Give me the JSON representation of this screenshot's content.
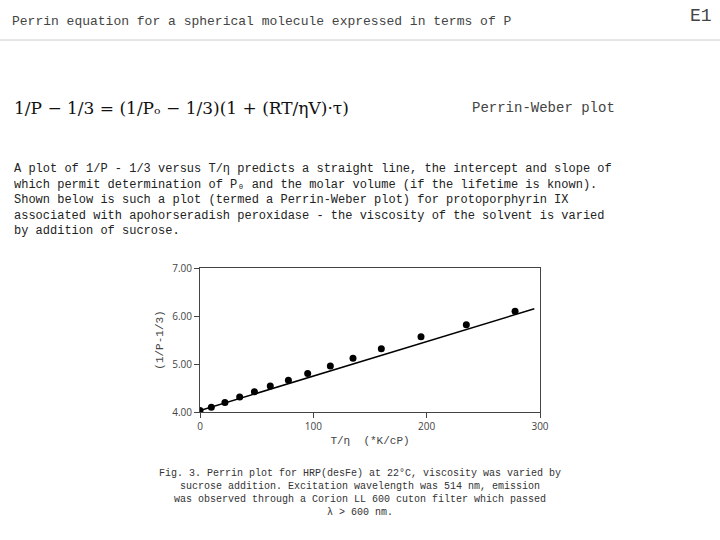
{
  "chart_data": {
    "type": "scatter",
    "title": "Perrin equation for a spherical molecule expressed in terms of P",
    "x_label": "T/η  (*K/cP)",
    "y_label": "(1/P-1/3)",
    "xlim": [
      0,
      300
    ],
    "xticks": [
      0,
      100,
      200,
      300
    ],
    "ylim": [
      4.0,
      7.0
    ],
    "yticks": [
      {
        "value": 4.0,
        "label": "4.00"
      },
      {
        "value": 5.0,
        "label": "5.00"
      },
      {
        "value": 6.0,
        "label": "6.00"
      },
      {
        "value": 7.0,
        "label": "7.00"
      }
    ],
    "grid": false,
    "series": [
      {
        "type": "scatter",
        "color": "#000000",
        "marker": "circle",
        "x": [
          0,
          10,
          22,
          35,
          48,
          62,
          78,
          95,
          115,
          135,
          160,
          195,
          235,
          278
        ],
        "values": [
          4.03,
          4.1,
          4.2,
          4.31,
          4.42,
          4.54,
          4.66,
          4.8,
          4.96,
          5.12,
          5.32,
          5.57,
          5.82,
          6.1
        ]
      },
      {
        "type": "line",
        "color": "#000000",
        "line_style": "solid",
        "x": [
          0,
          295
        ],
        "values": [
          4.03,
          6.15
        ]
      }
    ],
    "annotations": [
      "E1",
      "1/P − 1/3 = (1/Pₒ − 1/3)(1 + (RT/ηV)·τ)",
      "Perrin-​Weber plot",
      "A plot of 1/​P - 1/3 versus T/η predicts a straight line, the intercept and slope of",
      "which permit determination of P₀ and the molar volume (if the lifetime is known).",
      "Shown below is such a plot (termed a Perrin-Weber plot) for protoporphyrin IX",
      "associated with apohorseradish peroxidase - the viscosity of the solvent is varied",
      "by addition of sucrose.",
      "Fig. 3. Perrin plot for HRP(desFe) at 22°C, viscosity was varied by",
      "sucrose addition. Excitation wavelength was 514 nm, emission",
      "was observed through a Corion LL 600 cuton filter which passed",
      "λ > 600 nm."
    ]
  }
}
